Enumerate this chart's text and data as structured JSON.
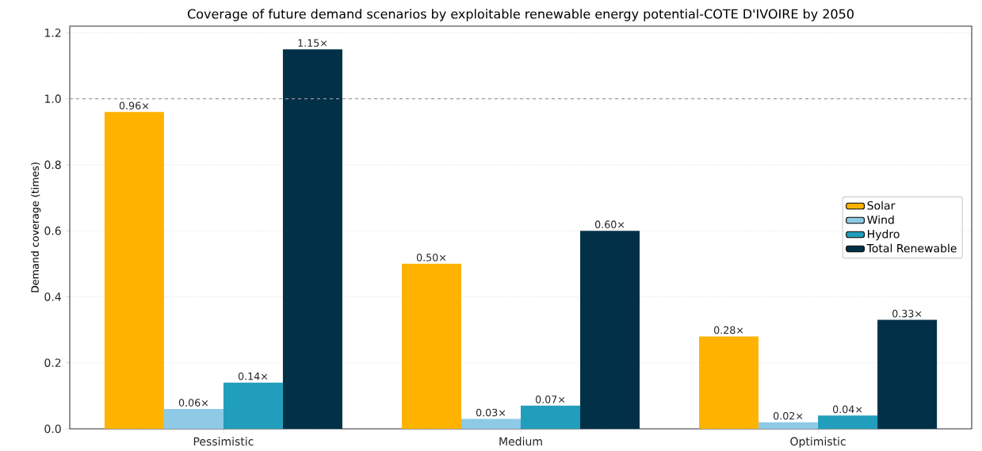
{
  "chart_data": {
    "type": "bar",
    "title": "Coverage of future demand scenarios by exploitable renewable energy potential-COTE D'IVOIRE by 2050",
    "ylabel": "Demand coverage (times)",
    "categories": [
      "Pessimistic",
      "Medium",
      "Optimistic"
    ],
    "series": [
      {
        "name": "Solar",
        "color": "#ffb300",
        "values": [
          0.96,
          0.5,
          0.28
        ],
        "value_labels": [
          "0.96×",
          "0.50×",
          "0.28×"
        ]
      },
      {
        "name": "Wind",
        "color": "#8ecae6",
        "values": [
          0.06,
          0.03,
          0.02
        ],
        "value_labels": [
          "0.06×",
          "0.03×",
          "0.02×"
        ]
      },
      {
        "name": "Hydro",
        "color": "#219ebc",
        "values": [
          0.14,
          0.07,
          0.04
        ],
        "value_labels": [
          "0.14×",
          "0.07×",
          "0.04×"
        ]
      },
      {
        "name": "Total Renewable",
        "color": "#023047",
        "values": [
          1.15,
          0.6,
          0.33
        ],
        "value_labels": [
          "1.15×",
          "0.60×",
          "0.33×"
        ]
      }
    ],
    "ylim": [
      0,
      1.22
    ],
    "yticks": [
      {
        "value": 0,
        "label": "0.0"
      },
      {
        "value": 0.2,
        "label": "0.2"
      },
      {
        "value": 0.4,
        "label": "0.4"
      },
      {
        "value": 0.6,
        "label": "0.6"
      },
      {
        "value": 0.8,
        "label": "0.8"
      },
      {
        "value": 1.0,
        "label": "1.0"
      },
      {
        "value": 1.2,
        "label": "1.2"
      }
    ],
    "ref_lines": [
      {
        "axis": "y",
        "value": 1.0,
        "color": "#999999",
        "line_style": "dashed"
      }
    ],
    "grid": "y",
    "legend": "right"
  }
}
